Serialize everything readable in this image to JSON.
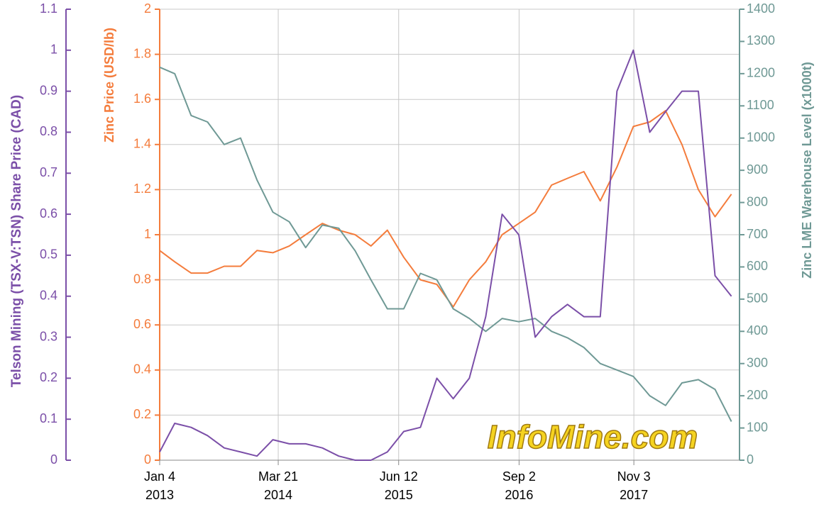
{
  "chart_data": {
    "type": "line",
    "y3_label": "Telson Mining (TSX-V:TSN) Share Price (CAD)",
    "ylabel": "Zinc Price (USD/lb)",
    "y2label": "Zinc LME Warehouse Level (x1000t)",
    "watermark": "InfoMine.com",
    "x": [
      "2013-01-04",
      "2013-03-01",
      "2013-05-01",
      "2013-07-01",
      "2013-09-01",
      "2013-11-01",
      "2014-01-01",
      "2014-03-01",
      "2014-05-01",
      "2014-07-01",
      "2014-09-01",
      "2014-11-01",
      "2015-01-01",
      "2015-03-01",
      "2015-05-01",
      "2015-07-01",
      "2015-09-01",
      "2015-11-01",
      "2016-01-01",
      "2016-03-01",
      "2016-05-01",
      "2016-07-01",
      "2016-09-01",
      "2016-11-01",
      "2017-01-01",
      "2017-03-01",
      "2017-05-01",
      "2017-07-01",
      "2017-09-01",
      "2017-11-01",
      "2018-01-01",
      "2018-03-01",
      "2018-05-01",
      "2018-07-01",
      "2018-09-01",
      "2018-11-01"
    ],
    "xlim": [
      "2013-01-04",
      "2018-12-01"
    ],
    "xticks": [
      {
        "value": "2013-01-04",
        "label": "Jan 4\n2013"
      },
      {
        "value": "2014-03-21",
        "label": "Mar 21\n2014"
      },
      {
        "value": "2015-06-12",
        "label": "Jun 12\n2015"
      },
      {
        "value": "2016-09-02",
        "label": "Sep 2\n2016"
      },
      {
        "value": "2017-11-03",
        "label": "Nov 3\n2017"
      }
    ],
    "ylim": [
      0,
      2
    ],
    "yticks": [
      0,
      0.2,
      0.4,
      0.6,
      0.8,
      1,
      1.2,
      1.4,
      1.6,
      1.8,
      2
    ],
    "y2lim": [
      0,
      1400
    ],
    "y2ticks": [
      0,
      100,
      200,
      300,
      400,
      500,
      600,
      700,
      800,
      900,
      1000,
      1100,
      1200,
      1300,
      1400
    ],
    "y3lim": [
      0,
      1.1
    ],
    "y3ticks": [
      0,
      0.1,
      0.2,
      0.3,
      0.4,
      0.5,
      0.6,
      0.7,
      0.8,
      0.9,
      1,
      1.1
    ],
    "grid": true,
    "series": [
      {
        "name": "Zinc Price",
        "color": "#f47c3c",
        "axis": "y",
        "values": [
          0.93,
          0.88,
          0.83,
          0.83,
          0.86,
          0.86,
          0.93,
          0.92,
          0.95,
          1.0,
          1.05,
          1.02,
          1.0,
          0.95,
          1.02,
          0.9,
          0.8,
          0.78,
          0.68,
          0.8,
          0.88,
          1.0,
          1.05,
          1.1,
          1.22,
          1.25,
          1.28,
          1.15,
          1.3,
          1.48,
          1.5,
          1.55,
          1.4,
          1.2,
          1.08,
          1.18
        ]
      },
      {
        "name": "Zinc LME Warehouse Level",
        "color": "#6f9995",
        "axis": "y2",
        "values": [
          1220,
          1200,
          1070,
          1050,
          980,
          1000,
          870,
          770,
          740,
          660,
          730,
          720,
          650,
          560,
          470,
          470,
          580,
          560,
          470,
          440,
          400,
          440,
          430,
          440,
          400,
          380,
          350,
          300,
          280,
          260,
          200,
          170,
          240,
          250,
          220,
          120
        ]
      },
      {
        "name": "Telson Mining Share Price",
        "color": "#7b4fa8",
        "axis": "y3",
        "values": [
          0.02,
          0.09,
          0.08,
          0.06,
          0.03,
          0.02,
          0.01,
          0.05,
          0.04,
          0.04,
          0.03,
          0.01,
          0,
          0,
          0.02,
          0.07,
          0.08,
          0.2,
          0.15,
          0.2,
          0.35,
          0.6,
          0.55,
          0.3,
          0.35,
          0.38,
          0.35,
          0.35,
          0.9,
          1.0,
          0.8,
          0.85,
          0.9,
          0.9,
          0.45,
          0.4
        ]
      }
    ]
  }
}
